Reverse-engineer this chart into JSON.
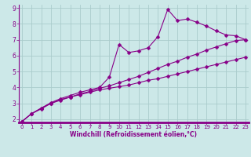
{
  "xlabel": "Windchill (Refroidissement éolien,°C)",
  "bg_color": "#cce8e8",
  "line_color": "#880088",
  "grid_color": "#aacccc",
  "line1_x": [
    0,
    1,
    2,
    3,
    4,
    5,
    6,
    7,
    8,
    9,
    10,
    11,
    12,
    13,
    14,
    15,
    16,
    17,
    18,
    19,
    20,
    21,
    22,
    23
  ],
  "line1_y": [
    1.85,
    2.35,
    2.7,
    3.0,
    3.2,
    3.4,
    3.6,
    3.75,
    3.95,
    4.1,
    4.3,
    4.5,
    4.7,
    4.95,
    5.2,
    5.45,
    5.65,
    5.9,
    6.1,
    6.35,
    6.55,
    6.75,
    6.95,
    7.0
  ],
  "line2_x": [
    0,
    1,
    2,
    3,
    4,
    5,
    6,
    7,
    8,
    9,
    10,
    11,
    12,
    13,
    14,
    15,
    16,
    17,
    18,
    19,
    20,
    21,
    22,
    23
  ],
  "line2_y": [
    1.85,
    2.35,
    2.7,
    3.05,
    3.3,
    3.5,
    3.7,
    3.85,
    4.0,
    4.65,
    6.7,
    6.2,
    6.3,
    6.5,
    7.2,
    8.9,
    8.2,
    8.3,
    8.1,
    7.85,
    7.55,
    7.3,
    7.25,
    7.0
  ],
  "line3_x": [
    0,
    1,
    2,
    3,
    4,
    5,
    6,
    7,
    8,
    9,
    10,
    11,
    12,
    13,
    14,
    15,
    16,
    17,
    18,
    19,
    20,
    21,
    22,
    23
  ],
  "line3_y": [
    1.85,
    2.35,
    2.65,
    3.0,
    3.25,
    3.4,
    3.55,
    3.7,
    3.85,
    3.95,
    4.05,
    4.15,
    4.3,
    4.45,
    4.55,
    4.7,
    4.85,
    5.0,
    5.15,
    5.3,
    5.45,
    5.6,
    5.75,
    5.9
  ],
  "xlim_min": 0,
  "xlim_max": 23,
  "ylim_min": 1.8,
  "ylim_max": 9.2,
  "yticks": [
    2,
    3,
    4,
    5,
    6,
    7,
    8,
    9
  ],
  "xticks": [
    0,
    1,
    2,
    3,
    4,
    5,
    6,
    7,
    8,
    9,
    10,
    11,
    12,
    13,
    14,
    15,
    16,
    17,
    18,
    19,
    20,
    21,
    22,
    23
  ],
  "marker": "D",
  "markersize": 2.5,
  "linewidth": 0.8,
  "tick_fontsize": 5.0,
  "xlabel_fontsize": 5.5
}
